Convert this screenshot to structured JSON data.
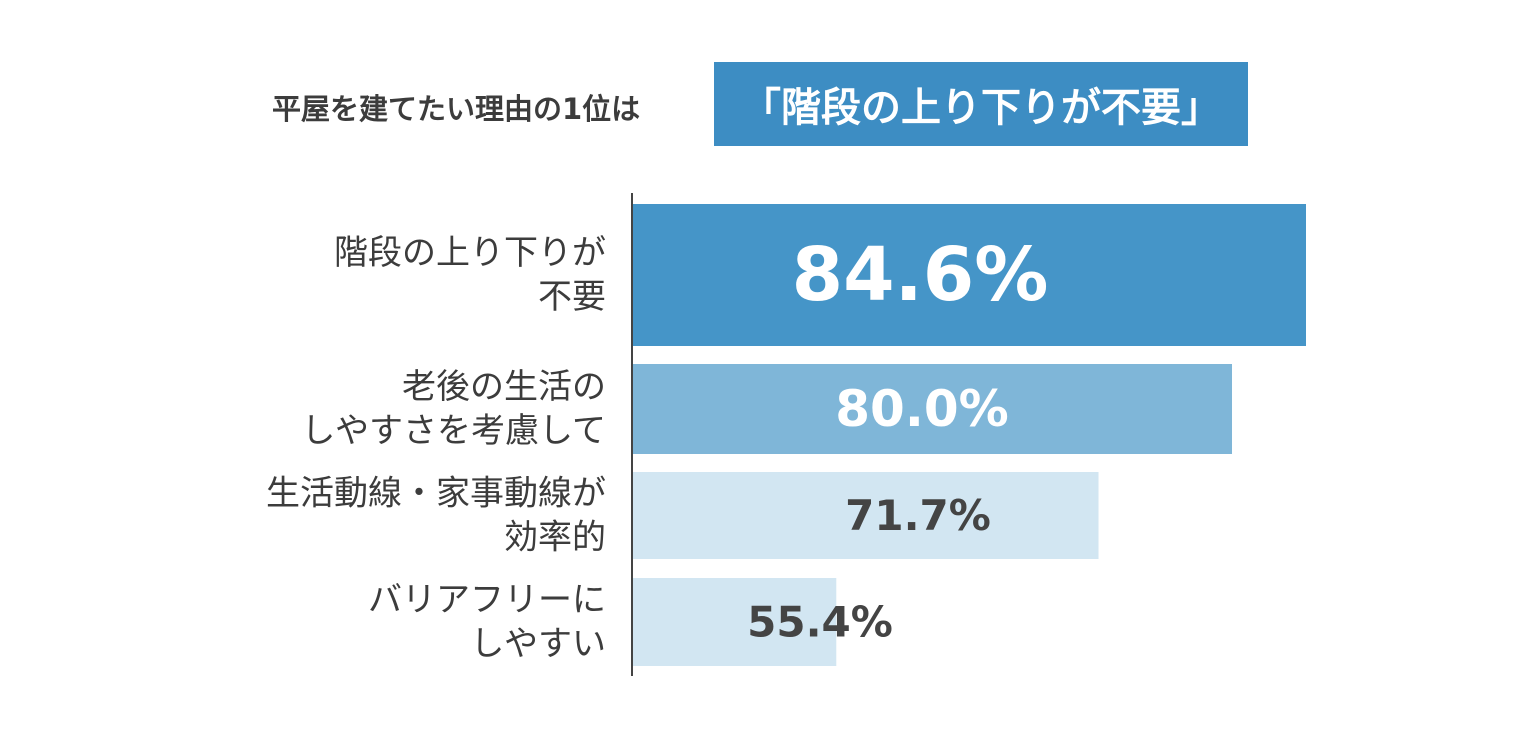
{
  "headline": {
    "lead": "平屋を建てたい理由の1位は",
    "highlight": "「階段の上り下りが不要」"
  },
  "colors": {
    "bar_1": "#4595c8",
    "bar_2": "#7fb6d8",
    "bar_3": "#d2e6f2",
    "bar_4": "#d2e6f2",
    "axis": "#444444",
    "label_dark": "#444444",
    "label_light": "#ffffff"
  },
  "chart_data": {
    "type": "bar",
    "orientation": "horizontal",
    "title": "平屋を建てたい理由の1位は「階段の上り下りが不要」",
    "categories": [
      [
        "階段の上り下りが",
        "不要"
      ],
      [
        "老後の生活の",
        "しやすさを考慮して"
      ],
      [
        "生活動線・家事動線が",
        "効率的"
      ],
      [
        "バリアフリーに",
        "しやすい"
      ]
    ],
    "values": [
      84.6,
      80.0,
      71.7,
      55.4
    ],
    "value_labels": [
      "84.6%",
      "80.0%",
      "71.7%",
      "55.4%"
    ],
    "xlim": [
      42.7,
      84.6
    ],
    "xlabel": "",
    "ylabel": "",
    "grid": false,
    "legend": "none"
  }
}
